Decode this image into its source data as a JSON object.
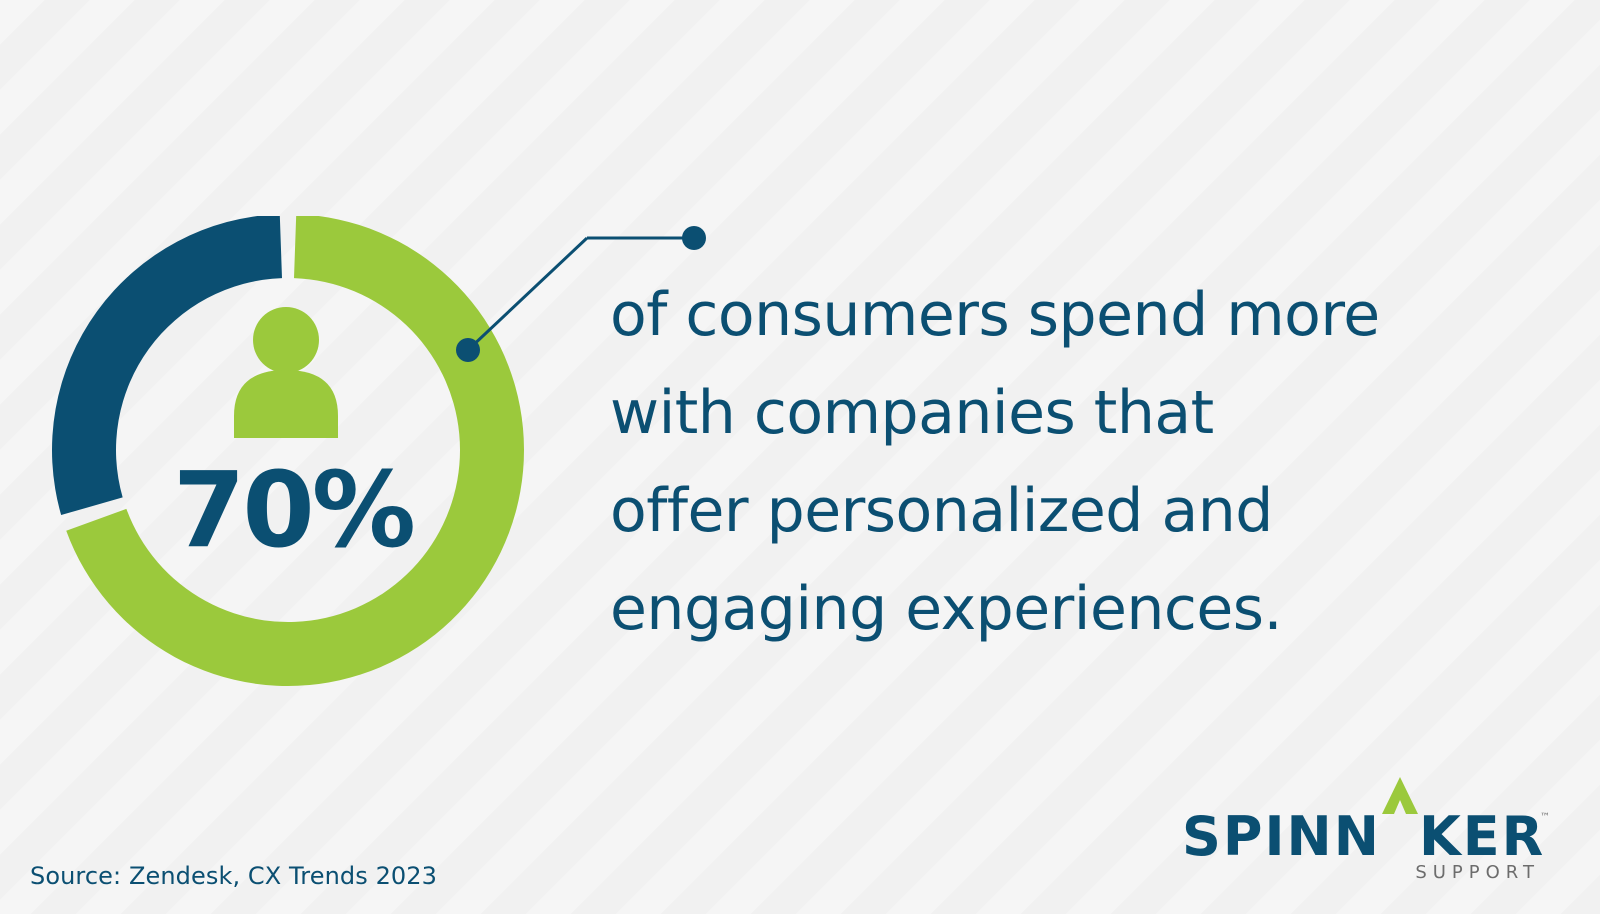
{
  "chart_data": {
    "type": "pie",
    "slices": [
      {
        "value": 70
      },
      {
        "value": 30
      }
    ],
    "value_label": "70%"
  },
  "headline_lines": [
    "of consumers spend more",
    "with companies that",
    "offer personalized and",
    "engaging experiences."
  ],
  "source": "Source: Zendesk, CX Trends 2023",
  "logo": {
    "word_part1": "SPINN",
    "word_part2": "KER",
    "sub": "SUPPORT",
    "tm": "™"
  },
  "colors": {
    "green": "#9bc93c",
    "navy": "#0b4f72",
    "gray": "#6c6c6c"
  }
}
